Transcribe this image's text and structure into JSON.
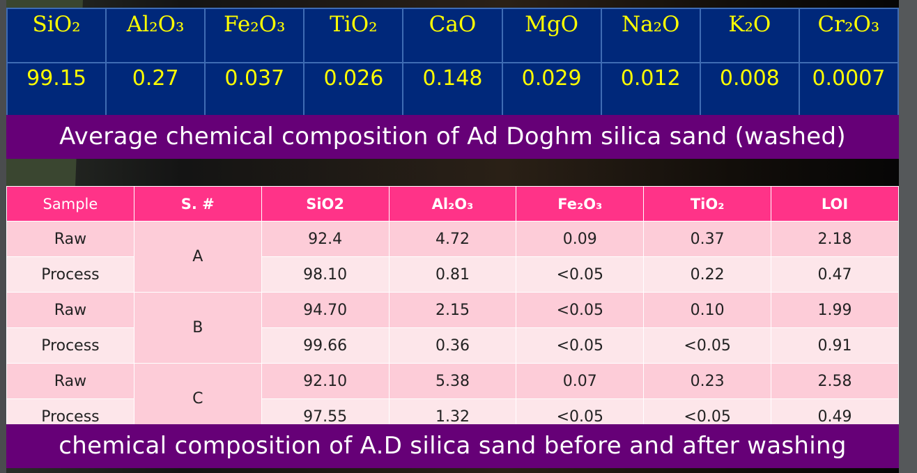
{
  "top_table": {
    "headers": [
      "SiO₂",
      "Al₂O₃",
      "Fe₂O₃",
      "TiO₂",
      "CaO",
      "MgO",
      "Na₂O",
      "K₂O",
      "Cr₂O₃"
    ],
    "values": [
      "99.15",
      "0.27",
      "0.037",
      "0.026",
      "0.148",
      "0.029",
      "0.012",
      "0.008",
      "0.0007"
    ]
  },
  "caption1": "Average chemical composition of Ad Doghm silica sand (washed)",
  "bottom_table": {
    "headers": [
      "Sample",
      "S. #",
      "SiO2",
      "Al₂O₃",
      "Fe₂O₃",
      "TiO₂",
      "LOI"
    ],
    "groups": [
      {
        "id": "A",
        "rows": [
          [
            "Raw",
            "92.4",
            "4.72",
            "0.09",
            "0.37",
            "2.18"
          ],
          [
            "Process",
            "98.10",
            "0.81",
            "<0.05",
            "0.22",
            "0.47"
          ]
        ]
      },
      {
        "id": "B",
        "rows": [
          [
            "Raw",
            "94.70",
            "2.15",
            "<0.05",
            "0.10",
            "1.99"
          ],
          [
            "Process",
            "99.66",
            "0.36",
            "<0.05",
            "<0.05",
            "0.91"
          ]
        ]
      },
      {
        "id": "C",
        "rows": [
          [
            "Raw",
            "92.10",
            "5.38",
            "0.07",
            "0.23",
            "2.58"
          ],
          [
            "Process",
            "97.55",
            "1.32",
            "<0.05",
            "<0.05",
            "0.49"
          ]
        ]
      }
    ]
  },
  "caption2": "chemical composition of A.D silica sand before and after washing",
  "colors": {
    "top_table_bg": "#00287a",
    "top_text": "#ffff00",
    "band": "#660077",
    "pink_header": "#ff3388"
  }
}
